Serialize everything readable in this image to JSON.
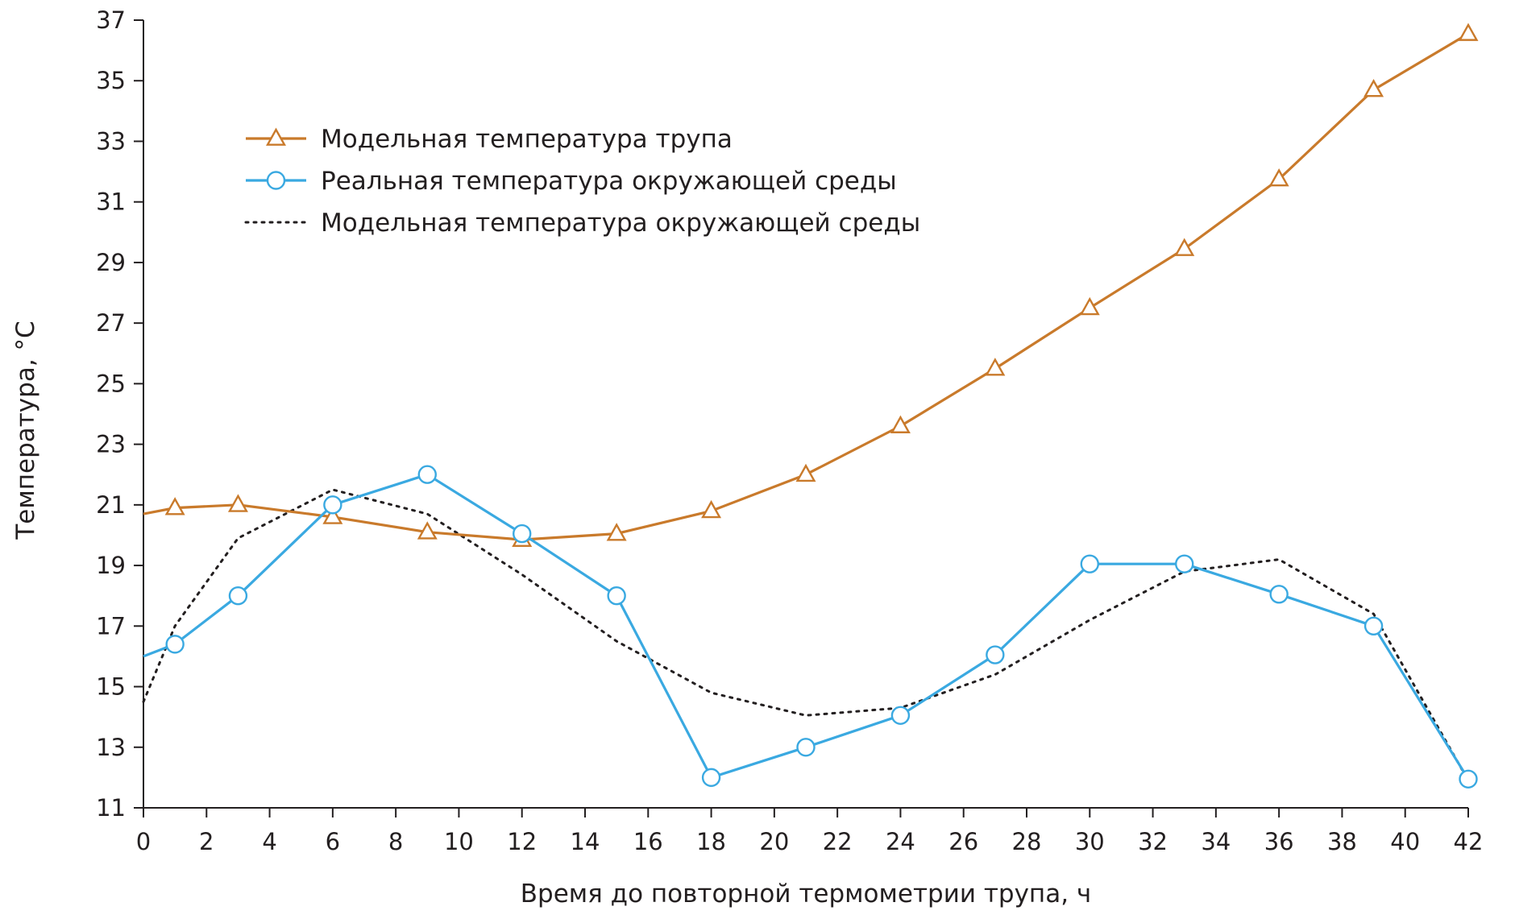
{
  "chart_data": {
    "type": "line",
    "title": "",
    "xlabel": "Время до повторной термометрии трупа, ч",
    "ylabel": "Температура, °С",
    "xlim": [
      0,
      42
    ],
    "ylim": [
      11,
      37
    ],
    "x_ticks": [
      0,
      2,
      4,
      6,
      8,
      10,
      12,
      14,
      16,
      18,
      20,
      22,
      24,
      26,
      28,
      30,
      32,
      34,
      36,
      38,
      40,
      42
    ],
    "y_ticks": [
      11,
      13,
      15,
      17,
      19,
      21,
      23,
      25,
      27,
      29,
      31,
      33,
      35,
      37
    ],
    "grid": false,
    "legend_position": "top-left",
    "series": [
      {
        "name": "Модельная температура трупа",
        "color": "#c97a2b",
        "line_style": "solid",
        "marker": "triangle",
        "line_points": [
          {
            "x": 0,
            "y": 20.7
          },
          {
            "x": 1,
            "y": 20.9
          },
          {
            "x": 3,
            "y": 21.0
          },
          {
            "x": 6,
            "y": 20.6
          },
          {
            "x": 9,
            "y": 20.1
          },
          {
            "x": 12,
            "y": 19.85
          },
          {
            "x": 15,
            "y": 20.05
          },
          {
            "x": 18,
            "y": 20.8
          },
          {
            "x": 21,
            "y": 22.0
          },
          {
            "x": 24,
            "y": 23.6
          },
          {
            "x": 27,
            "y": 25.5
          },
          {
            "x": 30,
            "y": 27.5
          },
          {
            "x": 33,
            "y": 29.45
          },
          {
            "x": 36,
            "y": 31.75
          },
          {
            "x": 39,
            "y": 34.7
          },
          {
            "x": 42,
            "y": 36.55
          }
        ],
        "marker_points": [
          {
            "x": 1,
            "y": 20.9
          },
          {
            "x": 3,
            "y": 21.0
          },
          {
            "x": 6,
            "y": 20.6
          },
          {
            "x": 9,
            "y": 20.1
          },
          {
            "x": 12,
            "y": 19.85
          },
          {
            "x": 15,
            "y": 20.05
          },
          {
            "x": 18,
            "y": 20.8
          },
          {
            "x": 21,
            "y": 22.0
          },
          {
            "x": 24,
            "y": 23.6
          },
          {
            "x": 27,
            "y": 25.5
          },
          {
            "x": 30,
            "y": 27.5
          },
          {
            "x": 33,
            "y": 29.45
          },
          {
            "x": 36,
            "y": 31.75
          },
          {
            "x": 39,
            "y": 34.7
          },
          {
            "x": 42,
            "y": 36.55
          }
        ]
      },
      {
        "name": "Реальная температура окружающей среды",
        "color": "#3aa9e1",
        "line_style": "solid",
        "marker": "circle",
        "line_points": [
          {
            "x": 0,
            "y": 16.0
          },
          {
            "x": 1,
            "y": 16.4
          },
          {
            "x": 3,
            "y": 18.0
          },
          {
            "x": 6,
            "y": 21.0
          },
          {
            "x": 9,
            "y": 22.0
          },
          {
            "x": 12,
            "y": 20.05
          },
          {
            "x": 15,
            "y": 18.0
          },
          {
            "x": 18,
            "y": 12.0
          },
          {
            "x": 21,
            "y": 13.0
          },
          {
            "x": 24,
            "y": 14.05
          },
          {
            "x": 27,
            "y": 16.05
          },
          {
            "x": 30,
            "y": 19.05
          },
          {
            "x": 33,
            "y": 19.05
          },
          {
            "x": 36,
            "y": 18.05
          },
          {
            "x": 39,
            "y": 17.0
          },
          {
            "x": 42,
            "y": 11.95
          }
        ],
        "marker_points": [
          {
            "x": 1,
            "y": 16.4
          },
          {
            "x": 3,
            "y": 18.0
          },
          {
            "x": 6,
            "y": 21.0
          },
          {
            "x": 9,
            "y": 22.0
          },
          {
            "x": 12,
            "y": 20.05
          },
          {
            "x": 15,
            "y": 18.0
          },
          {
            "x": 18,
            "y": 12.0
          },
          {
            "x": 21,
            "y": 13.0
          },
          {
            "x": 24,
            "y": 14.05
          },
          {
            "x": 27,
            "y": 16.05
          },
          {
            "x": 30,
            "y": 19.05
          },
          {
            "x": 33,
            "y": 19.05
          },
          {
            "x": 36,
            "y": 18.05
          },
          {
            "x": 39,
            "y": 17.0
          },
          {
            "x": 42,
            "y": 11.95
          }
        ]
      },
      {
        "name": "Модельная температура окружающей среды",
        "color": "#231f20",
        "line_style": "dotted",
        "marker": "none",
        "line_points": [
          {
            "x": 0,
            "y": 14.5
          },
          {
            "x": 1,
            "y": 17.0
          },
          {
            "x": 3,
            "y": 19.9
          },
          {
            "x": 6,
            "y": 21.5
          },
          {
            "x": 9,
            "y": 20.7
          },
          {
            "x": 12,
            "y": 18.7
          },
          {
            "x": 15,
            "y": 16.5
          },
          {
            "x": 18,
            "y": 14.8
          },
          {
            "x": 21,
            "y": 14.05
          },
          {
            "x": 24,
            "y": 14.3
          },
          {
            "x": 27,
            "y": 15.4
          },
          {
            "x": 30,
            "y": 17.2
          },
          {
            "x": 33,
            "y": 18.8
          },
          {
            "x": 36,
            "y": 19.2
          },
          {
            "x": 39,
            "y": 17.4
          },
          {
            "x": 42,
            "y": 11.9
          }
        ],
        "marker_points": []
      }
    ]
  }
}
